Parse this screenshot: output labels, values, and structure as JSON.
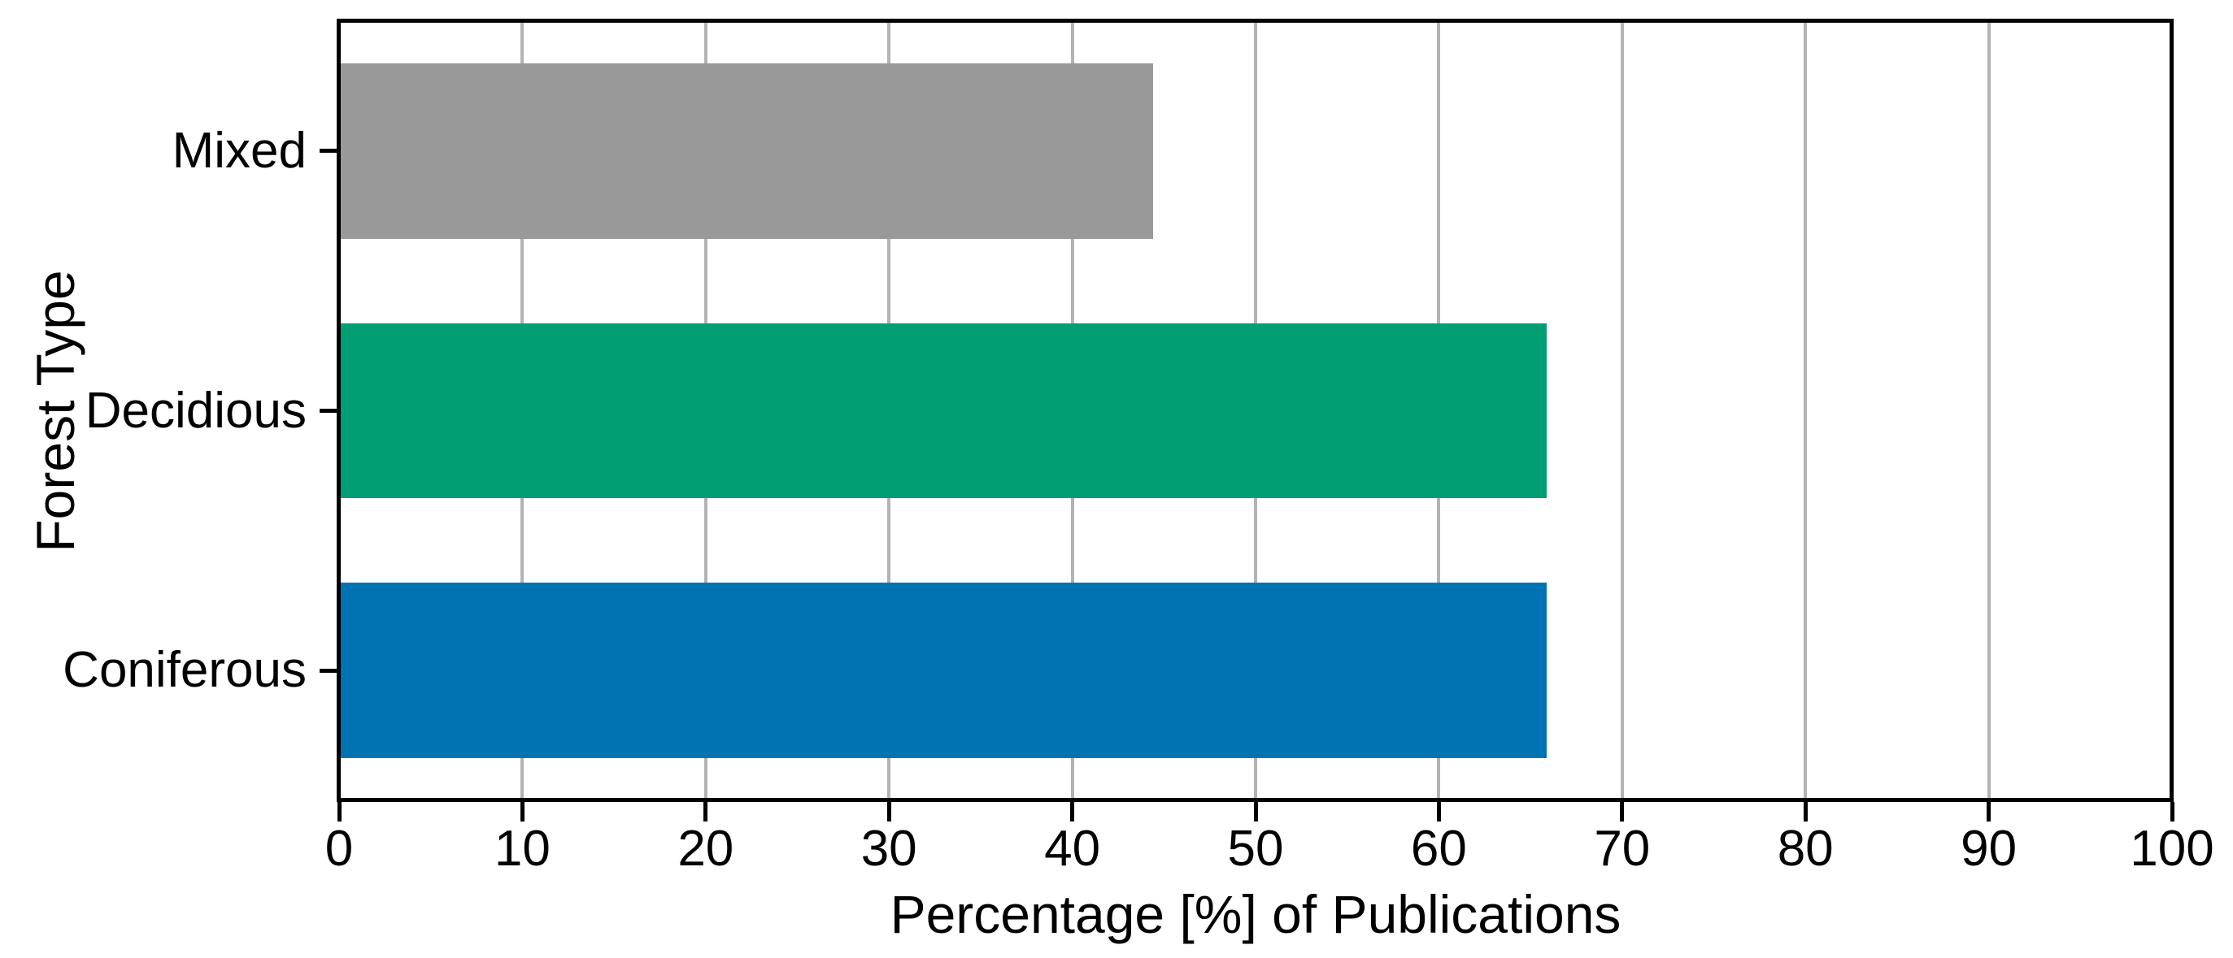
{
  "chart_data": {
    "type": "bar",
    "orientation": "horizontal",
    "title": "",
    "xlabel": "Percentage [%] of Publications",
    "ylabel": "Forest Type",
    "categories": [
      "Mixed",
      "Decidious",
      "Coniferous"
    ],
    "values": [
      44.4,
      65.9,
      65.9
    ],
    "bar_colors": [
      "#999999",
      "#029e73",
      "#0173b2"
    ],
    "xlim": [
      0,
      100
    ],
    "xticks": [
      0,
      10,
      20,
      30,
      40,
      50,
      60,
      70,
      80,
      90,
      100
    ],
    "grid": "vertical-gridlines-at-each-xtick",
    "gridline_color": "#b3b3b3",
    "axis_color": "#000000",
    "plot_background": "#ffffff",
    "legend": null
  }
}
